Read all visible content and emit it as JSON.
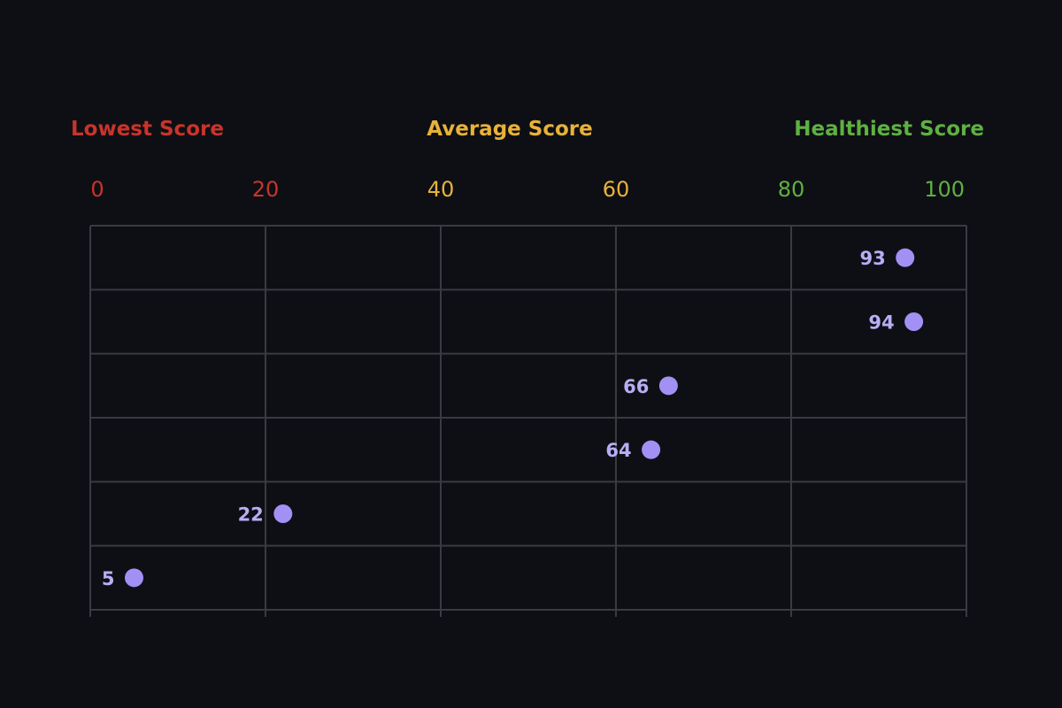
{
  "chart_data": {
    "type": "scatter",
    "title": "",
    "xlabel": "",
    "ylabel": "",
    "xlim": [
      0,
      100
    ],
    "grid": true,
    "band_labels": [
      {
        "label": "Lowest Score",
        "color": "#c8342b",
        "align": "left"
      },
      {
        "label": "Average Score",
        "color": "#e8b23a",
        "align": "center"
      },
      {
        "label": "Healthiest Score",
        "color": "#5fb043",
        "align": "right"
      }
    ],
    "x_ticks": [
      {
        "value": 0,
        "label": "0",
        "color": "#c8342b"
      },
      {
        "value": 20,
        "label": "20",
        "color": "#c8342b"
      },
      {
        "value": 40,
        "label": "40",
        "color": "#e8b23a"
      },
      {
        "value": 60,
        "label": "60",
        "color": "#e8b23a"
      },
      {
        "value": 80,
        "label": "80",
        "color": "#5fb043"
      },
      {
        "value": 100,
        "label": "100",
        "color": "#5fb043"
      }
    ],
    "points": [
      {
        "row": 1,
        "x": 93,
        "label": "93"
      },
      {
        "row": 2,
        "x": 94,
        "label": "94"
      },
      {
        "row": 3,
        "x": 66,
        "label": "66"
      },
      {
        "row": 4,
        "x": 64,
        "label": "64"
      },
      {
        "row": 5,
        "x": 22,
        "label": "22"
      },
      {
        "row": 6,
        "x": 5,
        "label": "5"
      }
    ],
    "rows": 6,
    "point_color": "#a290f5",
    "label_color": "#b9adf5",
    "grid_color": "#3a3b42"
  }
}
